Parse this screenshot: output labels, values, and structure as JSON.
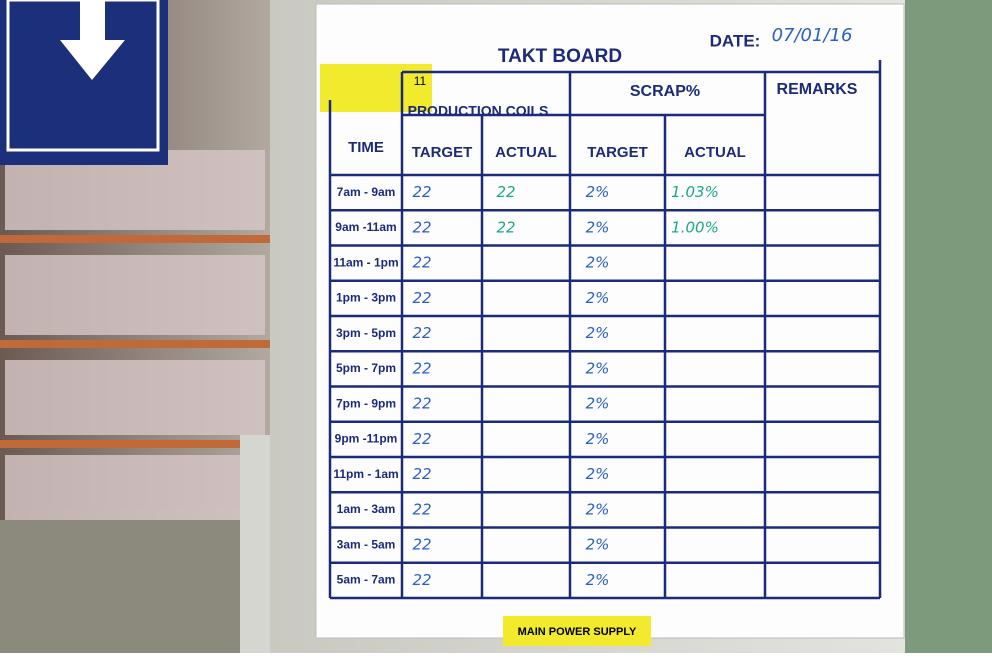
{
  "board": {
    "title": "TAKT BOARD",
    "date_label": "DATE:",
    "date": "07/01/16",
    "board_no": "11",
    "headers": {
      "time": "TIME",
      "production": "PRODUCTION COILS",
      "scrap": "SCRAP%",
      "remarks": "REMARKS",
      "sub": [
        "TARGET",
        "ACTUAL",
        "TARGET",
        "ACTUAL"
      ]
    },
    "rows": [
      {
        "time": "7am - 9am",
        "target": "22",
        "actual": "22",
        "scrap_target": "2%",
        "scrap_actual": "1.03%"
      },
      {
        "time": "9am -11am",
        "target": "22",
        "actual": "22",
        "scrap_target": "2%",
        "scrap_actual": "1.00%"
      },
      {
        "time": "11am - 1pm",
        "target": "22",
        "scrap_target": "2%"
      },
      {
        "time": "1pm - 3pm",
        "target": "22",
        "scrap_target": "2%"
      },
      {
        "time": "3pm - 5pm",
        "target": "22",
        "scrap_target": "2%"
      },
      {
        "time": "5pm - 7pm",
        "target": "22",
        "scrap_target": "2%"
      },
      {
        "time": "7pm - 9pm",
        "target": "22",
        "scrap_target": "2%"
      },
      {
        "time": "9pm -11pm",
        "target": "22",
        "scrap_target": "2%"
      },
      {
        "time": "11pm - 1am",
        "target": "22",
        "scrap_target": "2%"
      },
      {
        "time": "1am - 3am",
        "target": "22",
        "scrap_target": "2%"
      },
      {
        "time": "3am - 5am",
        "target": "22",
        "scrap_target": "2%"
      },
      {
        "time": "5am - 7am",
        "target": "22",
        "scrap_target": "2%"
      }
    ]
  },
  "sign": "MAIN POWER SUPPLY"
}
